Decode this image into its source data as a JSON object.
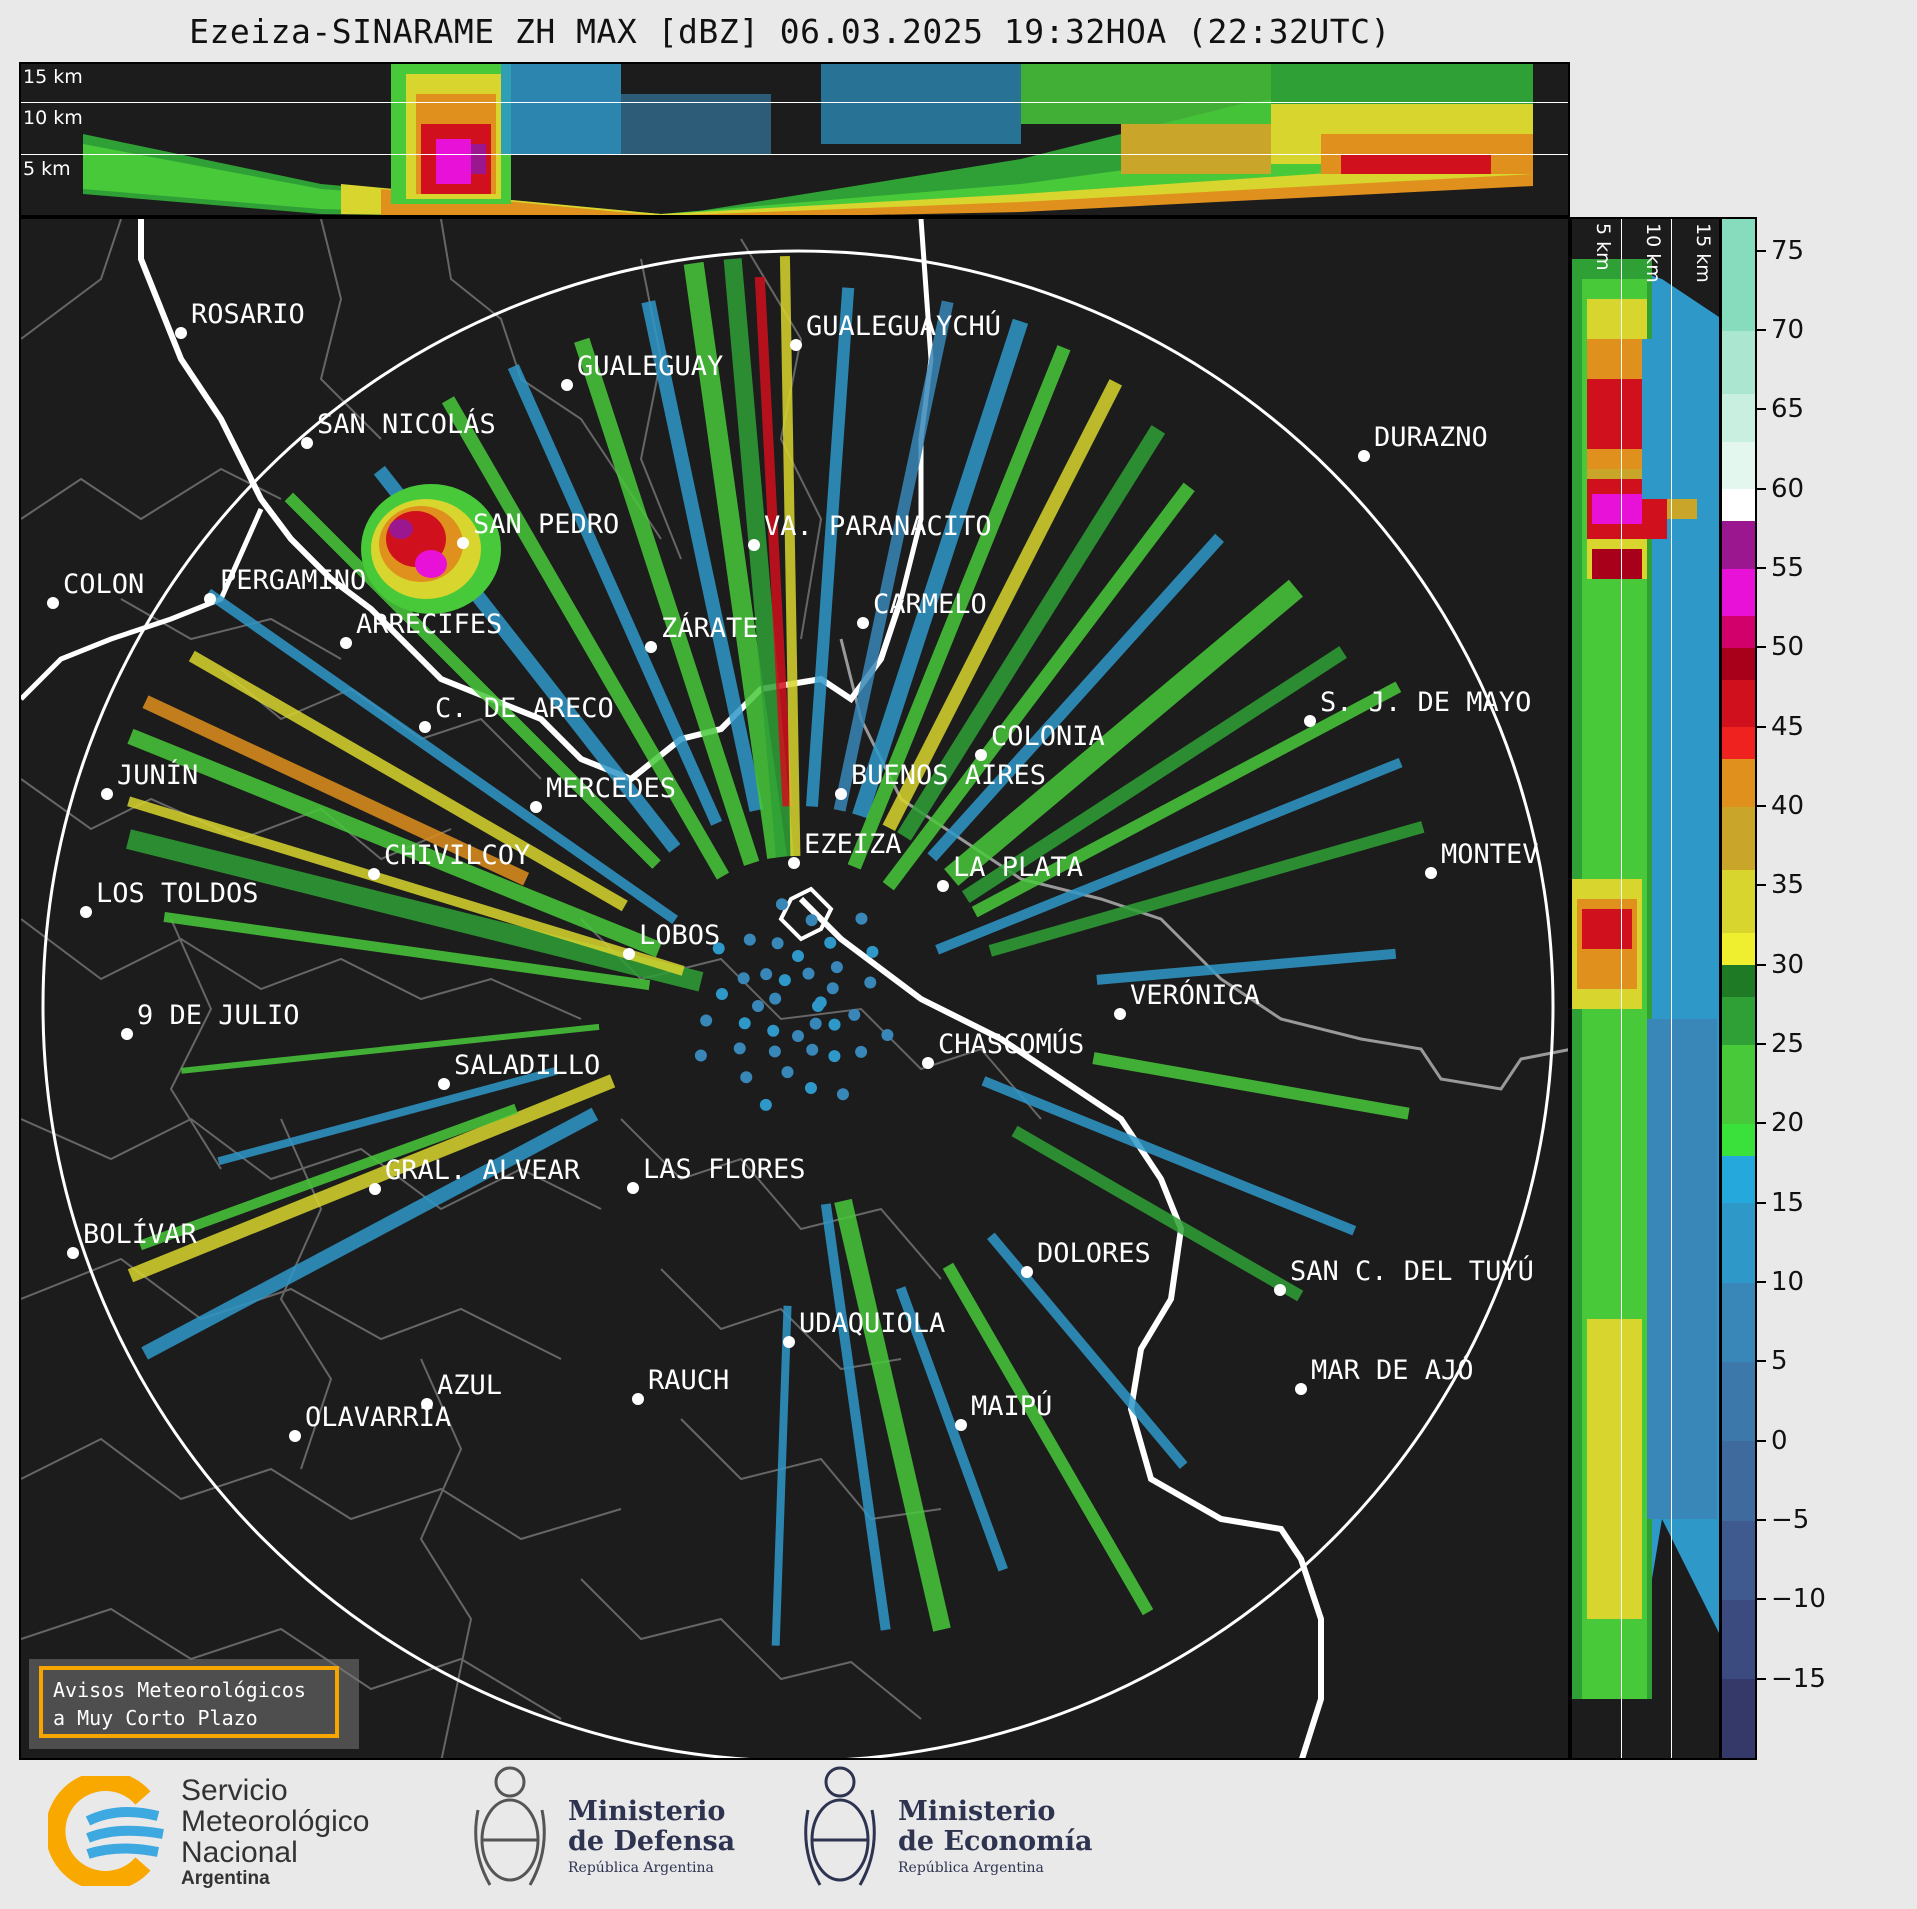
{
  "title": "Ezeiza-SINARAME ZH MAX [dBZ] 06.03.2025 19:32HOA (22:32UTC)",
  "top_panel": {
    "altitudes": [
      "15 km",
      "10 km",
      "5 km"
    ]
  },
  "right_panel": {
    "altitudes": [
      "5 km",
      "10 km",
      "15 km"
    ]
  },
  "colorbar": {
    "unit": "dBZ",
    "range": [
      -20,
      77
    ],
    "ticks": [
      "75",
      "70",
      "65",
      "60",
      "55",
      "50",
      "45",
      "40",
      "35",
      "30",
      "25",
      "20",
      "15",
      "10",
      "5",
      "0",
      "−5",
      "−10",
      "−15"
    ],
    "tick_values": [
      75,
      70,
      65,
      60,
      55,
      50,
      45,
      40,
      35,
      30,
      25,
      20,
      15,
      10,
      5,
      0,
      -5,
      -10,
      -15
    ],
    "bands": [
      {
        "from": -20,
        "to": -15,
        "color": "#35396a"
      },
      {
        "from": -15,
        "to": -10,
        "color": "#3b4a7f"
      },
      {
        "from": -10,
        "to": -5,
        "color": "#3e5a8f"
      },
      {
        "from": -5,
        "to": 0,
        "color": "#3f6a9e"
      },
      {
        "from": 0,
        "to": 5,
        "color": "#3d78ab"
      },
      {
        "from": 5,
        "to": 10,
        "color": "#3887b8"
      },
      {
        "from": 10,
        "to": 15,
        "color": "#2e98c9"
      },
      {
        "from": 15,
        "to": 18,
        "color": "#25a9dc"
      },
      {
        "from": 18,
        "to": 20,
        "color": "#39e13a"
      },
      {
        "from": 20,
        "to": 25,
        "color": "#48c93a"
      },
      {
        "from": 25,
        "to": 28,
        "color": "#2fa035"
      },
      {
        "from": 28,
        "to": 30,
        "color": "#1f7a25"
      },
      {
        "from": 30,
        "to": 32,
        "color": "#f0ef2f"
      },
      {
        "from": 32,
        "to": 36,
        "color": "#d8d52e"
      },
      {
        "from": 36,
        "to": 40,
        "color": "#c9a62a"
      },
      {
        "from": 40,
        "to": 43,
        "color": "#e0901c"
      },
      {
        "from": 43,
        "to": 45,
        "color": "#f0221f"
      },
      {
        "from": 45,
        "to": 48,
        "color": "#d0101c"
      },
      {
        "from": 48,
        "to": 50,
        "color": "#a8001a"
      },
      {
        "from": 50,
        "to": 52,
        "color": "#d2006a"
      },
      {
        "from": 52,
        "to": 55,
        "color": "#e811d8"
      },
      {
        "from": 55,
        "to": 58,
        "color": "#9b1790"
      },
      {
        "from": 58,
        "to": 60,
        "color": "#ffffff"
      },
      {
        "from": 60,
        "to": 63,
        "color": "#e4f7ee"
      },
      {
        "from": 63,
        "to": 66,
        "color": "#c8efdf"
      },
      {
        "from": 66,
        "to": 70,
        "color": "#abe6d0"
      },
      {
        "from": 70,
        "to": 77,
        "color": "#86dcbd"
      }
    ]
  },
  "cities": [
    {
      "name": "ROSARIO"
    },
    {
      "name": "GUALEGUAYCHÚ"
    },
    {
      "name": "GUALEGUAY"
    },
    {
      "name": "SAN NICOLÁS"
    },
    {
      "name": "DURAZNO"
    },
    {
      "name": "SAN PEDRO"
    },
    {
      "name": "VA. PARANACITO"
    },
    {
      "name": "COLON"
    },
    {
      "name": "PERGAMINO"
    },
    {
      "name": "CARMELO"
    },
    {
      "name": "ARRECIFES"
    },
    {
      "name": "ZÁRATE"
    },
    {
      "name": "S. J. DE MAYO"
    },
    {
      "name": "C. DE ARECO"
    },
    {
      "name": "COLONIA"
    },
    {
      "name": "JUNÍN"
    },
    {
      "name": "BUENOS AIRES"
    },
    {
      "name": "MERCEDES"
    },
    {
      "name": "EZEIZA"
    },
    {
      "name": "MONTEV"
    },
    {
      "name": "CHIVILCOY"
    },
    {
      "name": "LA PLATA"
    },
    {
      "name": "LOS TOLDOS"
    },
    {
      "name": "LOBOS"
    },
    {
      "name": "VERÓNICA"
    },
    {
      "name": "9 DE JULIO"
    },
    {
      "name": "CHASCOMÚS"
    },
    {
      "name": "SALADILLO"
    },
    {
      "name": "GRAL. ALVEAR"
    },
    {
      "name": "LAS FLORES"
    },
    {
      "name": "BOLÍVAR"
    },
    {
      "name": "DOLORES"
    },
    {
      "name": "SAN C. DEL TUYÚ"
    },
    {
      "name": "UDAQUIOLA"
    },
    {
      "name": "MAR DE AJÓ"
    },
    {
      "name": "AZUL"
    },
    {
      "name": "RAUCH"
    },
    {
      "name": "OLAVARRÍA"
    },
    {
      "name": "MAIPÚ"
    }
  ],
  "alert_box": {
    "line1": "Avisos Meteorológicos",
    "line2": "a Muy Corto Plazo"
  },
  "logos": {
    "smn": {
      "line1": "Servicio",
      "line2": "Meteorológico",
      "line3": "Nacional",
      "line4": "Argentina",
      "colors": {
        "yellow": "#f9a800",
        "blue": "#3ea8e0"
      }
    },
    "defensa": {
      "line1": "Ministerio",
      "line2": "de Defensa",
      "line3": "República Argentina"
    },
    "economia": {
      "line1": "Ministerio",
      "line2": "de Economía",
      "line3": "República Argentina"
    }
  }
}
